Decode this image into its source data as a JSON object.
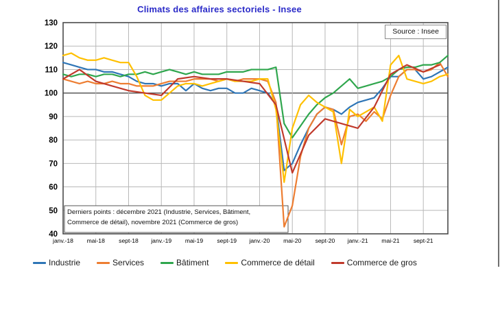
{
  "chart_data": {
    "type": "line",
    "title": "Climats des affaires sectoriels - Insee",
    "source_label": "Source : Insee",
    "annotation_lines": [
      "Derniers points : décembre 2021 (Industrie, Services, Bâtiment,",
      "Commerce de détail), novembre 2021 (Commerce de gros)"
    ],
    "ylim": [
      40,
      130
    ],
    "y_ticks": [
      40,
      50,
      60,
      70,
      80,
      90,
      100,
      110,
      120,
      130
    ],
    "emphasized_gridline": 100,
    "x_total_months": 47,
    "x_ticks": [
      {
        "month": 0,
        "label": "janv.-18"
      },
      {
        "month": 4,
        "label": "mai-18"
      },
      {
        "month": 8,
        "label": "sept-18"
      },
      {
        "month": 12,
        "label": "janv.-19"
      },
      {
        "month": 16,
        "label": "mai-19"
      },
      {
        "month": 20,
        "label": "sept-19"
      },
      {
        "month": 24,
        "label": "janv.-20"
      },
      {
        "month": 28,
        "label": "mai-20"
      },
      {
        "month": 32,
        "label": "sept-20"
      },
      {
        "month": 36,
        "label": "janv.-21"
      },
      {
        "month": 40,
        "label": "mai-21"
      },
      {
        "month": 44,
        "label": "sept-21"
      }
    ],
    "grid": true,
    "legend_position": "bottom",
    "colors": {
      "grid": "#b8b8b8",
      "grid_emphasis": "#4a4a4a",
      "plot_border": "#4a4a4a",
      "title": "#2a2ac8"
    },
    "series": [
      {
        "name": "Industrie",
        "color": "#2e75b6",
        "start_month": 0,
        "month_step": 1,
        "values": [
          113,
          112,
          111,
          110,
          110,
          109,
          109,
          108,
          107,
          105,
          104,
          104,
          103,
          104,
          104,
          101,
          104,
          102,
          101,
          102,
          102,
          100,
          100,
          102,
          101,
          100,
          95,
          67,
          70,
          78,
          85,
          91,
          94,
          93,
          91,
          94,
          96,
          97,
          98,
          102,
          107,
          107,
          110,
          110,
          106,
          107,
          109,
          111
        ]
      },
      {
        "name": "Services",
        "color": "#ed7d31",
        "start_month": 0,
        "month_step": 1,
        "values": [
          106,
          105,
          104,
          105,
          104,
          104,
          105,
          104,
          104,
          103,
          103,
          103,
          104,
          105,
          105,
          105,
          106,
          106,
          106,
          105,
          106,
          105,
          106,
          106,
          106,
          105,
          96,
          43,
          52,
          73,
          85,
          91,
          94,
          93,
          78,
          90,
          91,
          88,
          92,
          89,
          99,
          107,
          110,
          110,
          109,
          110,
          113,
          107
        ]
      },
      {
        "name": "Bâtiment",
        "color": "#2fa64d",
        "start_month": 0,
        "month_step": 1,
        "values": [
          108,
          107,
          108,
          108,
          107,
          108,
          108,
          107,
          108,
          108,
          109,
          108,
          109,
          110,
          109,
          108,
          109,
          108,
          108,
          108,
          109,
          109,
          109,
          110,
          110,
          110,
          111,
          87,
          81,
          86,
          91,
          95,
          98,
          100,
          103,
          106,
          102,
          103,
          104,
          105,
          107,
          110,
          111,
          111,
          112,
          112,
          113,
          116
        ]
      },
      {
        "name": "Commerce de détail",
        "color": "#ffc000",
        "start_month": 0,
        "month_step": 1,
        "values": [
          116,
          117,
          115,
          114,
          114,
          115,
          114,
          113,
          113,
          107,
          99,
          97,
          97,
          100,
          103,
          104,
          104,
          103,
          104,
          105,
          106,
          105,
          105,
          105,
          106,
          106,
          93,
          62,
          85,
          95,
          99,
          96,
          94,
          92,
          70,
          93,
          90,
          92,
          94,
          88,
          112,
          116,
          106,
          105,
          104,
          105,
          107,
          108
        ]
      },
      {
        "name": "Commerce de gros",
        "color": "#c0392b",
        "start_month": 0,
        "month_step": 2,
        "values": [
          106,
          110,
          105,
          103,
          101,
          100,
          99,
          106,
          107,
          106,
          106,
          105,
          104,
          95,
          66,
          82,
          89,
          87,
          85,
          94,
          108,
          112,
          109,
          112
        ]
      }
    ]
  }
}
